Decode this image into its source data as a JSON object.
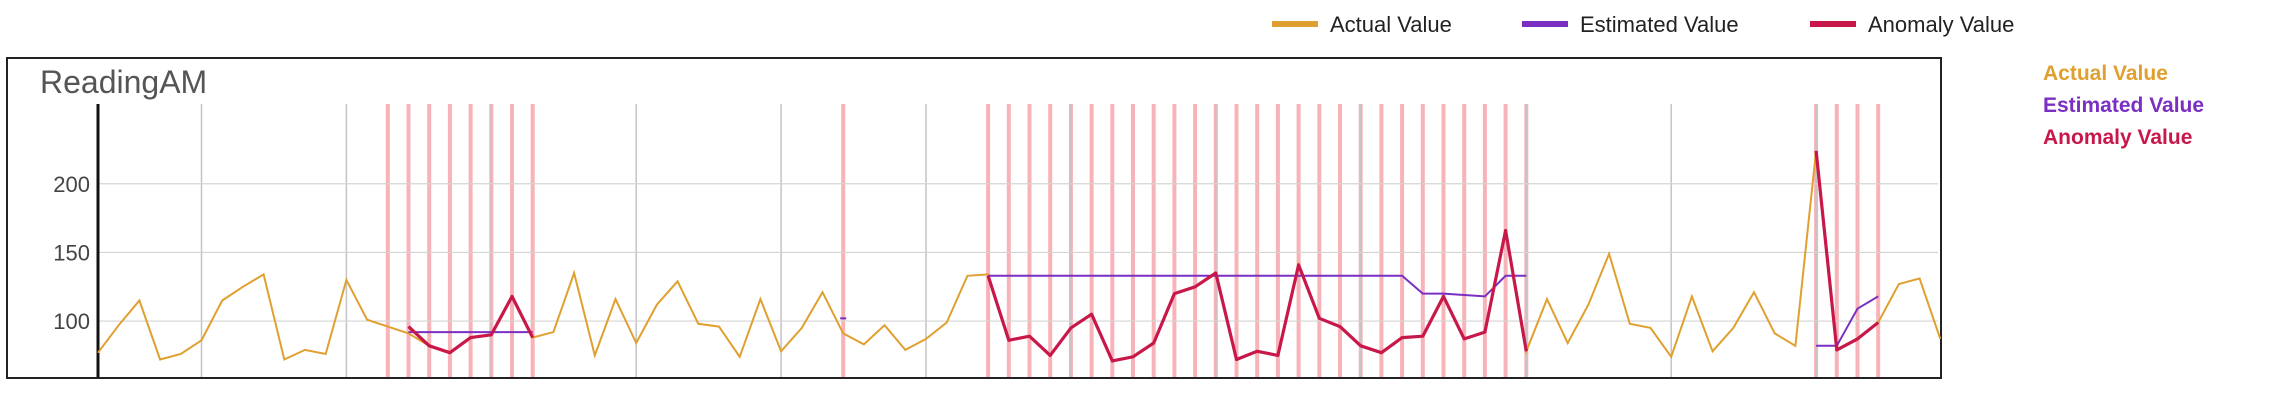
{
  "chart_data": {
    "type": "line",
    "title": "ReadingAM",
    "yticks": [
      100,
      150,
      200
    ],
    "ylim": [
      60,
      245
    ],
    "xlim": [
      0,
      89
    ],
    "grid": true,
    "legend_position": "top-right",
    "colors": {
      "actual": "#e0a030",
      "estimated": "#7b2fc2",
      "anomaly": "#c8184a",
      "anomaly_band": "#f7b3b8",
      "grid": "#d4d4d4",
      "vertical_grid": "#c4c4c4"
    },
    "series": [
      {
        "name": "Actual Value",
        "x": [
          0,
          1,
          2,
          3,
          4,
          5,
          6,
          7,
          8,
          9,
          10,
          11,
          12,
          13,
          14,
          15,
          16,
          17,
          18,
          19,
          20,
          21,
          22,
          23,
          24,
          25,
          26,
          27,
          28,
          29,
          30,
          31,
          32,
          33,
          34,
          35,
          36,
          37,
          38,
          39,
          40,
          41,
          42,
          43,
          44,
          45,
          46,
          47,
          48,
          49,
          50,
          51,
          52,
          53,
          54,
          55,
          56,
          57,
          58,
          59,
          60,
          61,
          62,
          63,
          64,
          65,
          66,
          67,
          68,
          69,
          70,
          71,
          72,
          73,
          74,
          75,
          76,
          77,
          78,
          79,
          80,
          81,
          82,
          83,
          84,
          85,
          86,
          87,
          88,
          89
        ],
        "values": [
          77,
          97,
          115,
          72,
          76,
          86,
          115,
          125,
          134,
          72,
          79,
          76,
          130,
          101,
          96,
          91,
          82,
          77,
          88,
          90,
          118,
          88,
          92,
          135,
          75,
          116,
          84,
          112,
          129,
          98,
          96,
          74,
          116,
          78,
          95,
          121,
          91,
          83,
          97,
          79,
          87,
          99,
          133,
          134,
          86,
          89,
          75,
          95,
          105,
          71,
          74,
          84,
          120,
          125,
          135,
          72,
          78,
          75,
          141,
          102,
          96,
          82,
          77,
          88,
          89,
          118,
          87,
          92,
          166,
          78,
          116,
          84,
          112,
          149,
          98,
          95,
          74,
          118,
          78,
          95,
          121,
          91,
          82,
          224,
          79,
          87,
          99,
          127,
          131,
          87
        ]
      },
      {
        "name": "Estimated Value",
        "segments": [
          {
            "x": [
              15,
              16,
              17,
              18,
              19,
              20,
              21
            ],
            "values": [
              92,
              92,
              92,
              92,
              92,
              92,
              92
            ]
          },
          {
            "x": [
              36
            ],
            "values": [
              102
            ]
          },
          {
            "x": [
              43,
              44,
              45,
              46,
              47,
              48,
              49,
              50,
              51,
              52,
              53,
              54,
              55,
              56,
              57,
              58,
              59,
              60,
              61,
              62,
              63,
              64,
              65,
              66,
              67,
              68,
              69
            ],
            "values": [
              133,
              133,
              133,
              133,
              133,
              133,
              133,
              133,
              133,
              133,
              133,
              133,
              133,
              133,
              133,
              133,
              133,
              133,
              133,
              133,
              133,
              120,
              120,
              119,
              118,
              133,
              133
            ]
          },
          {
            "x": [
              83,
              84,
              85,
              86
            ],
            "values": [
              82,
              82,
              109,
              118
            ]
          }
        ]
      },
      {
        "name": "Anomaly Value",
        "segments": [
          {
            "x": [
              15,
              16,
              17,
              18,
              19,
              20,
              21
            ],
            "values": [
              96,
              82,
              77,
              88,
              90,
              118,
              88
            ]
          },
          {
            "x": [
              43,
              44,
              45,
              46,
              47,
              48,
              49,
              50,
              51,
              52,
              53,
              54,
              55,
              56,
              57,
              58,
              59,
              60,
              61,
              62,
              63,
              64,
              65,
              66,
              67,
              68,
              69
            ],
            "values": [
              133,
              86,
              89,
              75,
              95,
              105,
              71,
              74,
              84,
              120,
              125,
              135,
              72,
              78,
              75,
              141,
              102,
              96,
              82,
              77,
              88,
              89,
              118,
              87,
              92,
              166,
              78
            ]
          },
          {
            "x": [
              83,
              84,
              85,
              86
            ],
            "values": [
              224,
              79,
              87,
              99
            ]
          }
        ]
      }
    ],
    "anomaly_x": [
      14,
      15,
      16,
      17,
      18,
      19,
      20,
      21,
      36,
      43,
      44,
      45,
      46,
      47,
      48,
      49,
      50,
      51,
      52,
      53,
      54,
      55,
      56,
      57,
      58,
      59,
      60,
      61,
      62,
      63,
      64,
      65,
      66,
      67,
      68,
      69,
      83,
      84,
      85,
      86
    ],
    "vertical_gridlines_x": [
      5,
      12,
      19,
      26,
      33,
      40,
      47,
      54,
      61,
      69,
      76,
      83
    ]
  },
  "legend_top": [
    "Actual Value",
    "Estimated Value",
    "Anomaly Value"
  ],
  "legend_side": [
    "Actual Value",
    "Estimated Value",
    "Anomaly Value"
  ]
}
